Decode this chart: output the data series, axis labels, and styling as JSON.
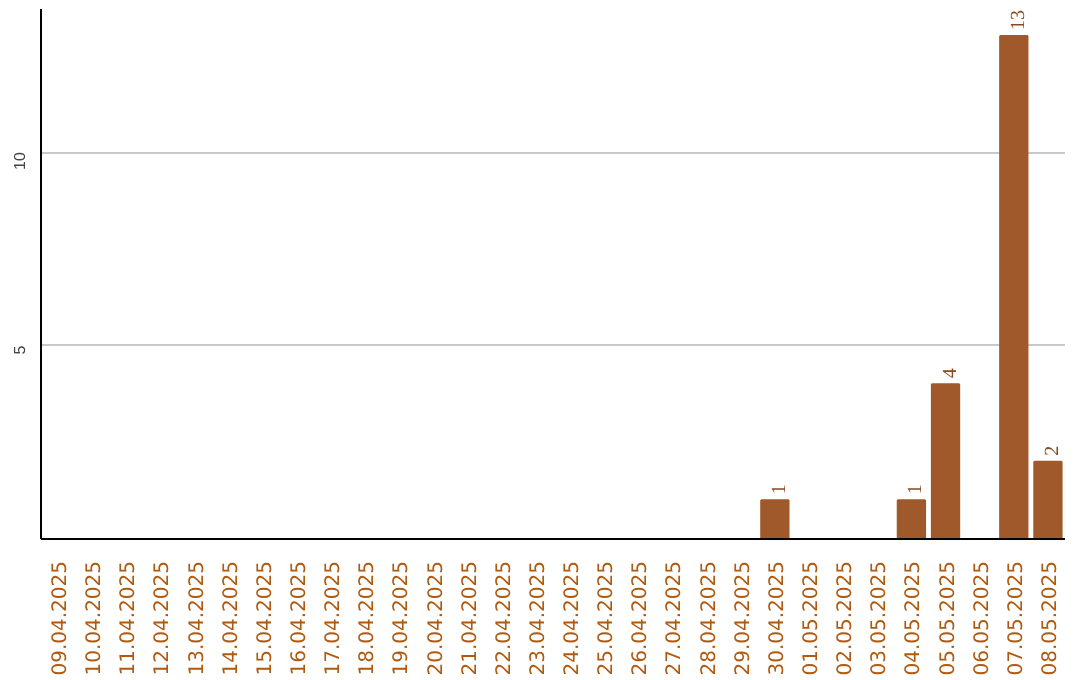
{
  "chart_data": {
    "type": "bar",
    "categories": [
      "09.04.2025",
      "10.04.2025",
      "11.04.2025",
      "12.04.2025",
      "13.04.2025",
      "14.04.2025",
      "15.04.2025",
      "16.04.2025",
      "17.04.2025",
      "18.04.2025",
      "19.04.2025",
      "20.04.2025",
      "21.04.2025",
      "22.04.2025",
      "23.04.2025",
      "24.04.2025",
      "25.04.2025",
      "26.04.2025",
      "27.04.2025",
      "28.04.2025",
      "29.04.2025",
      "30.04.2025",
      "01.05.2025",
      "02.05.2025",
      "03.05.2025",
      "04.05.2025",
      "05.05.2025",
      "06.05.2025",
      "07.05.2025",
      "08.05.2025"
    ],
    "values": [
      0,
      0,
      0,
      0,
      0,
      0,
      0,
      0,
      0,
      0,
      0,
      0,
      0,
      0,
      0,
      0,
      0,
      0,
      0,
      0,
      0,
      1,
      0,
      0,
      0,
      1,
      4,
      0,
      13,
      2
    ],
    "value_labels": [
      null,
      null,
      null,
      null,
      null,
      null,
      null,
      null,
      null,
      null,
      null,
      null,
      null,
      null,
      null,
      null,
      null,
      null,
      null,
      null,
      null,
      "1",
      null,
      null,
      null,
      "1",
      "4",
      null,
      "13",
      "2"
    ],
    "color": "#a0592a",
    "ylim": [
      0,
      13.7
    ],
    "yticks": [
      5,
      10
    ],
    "grid": "y"
  }
}
